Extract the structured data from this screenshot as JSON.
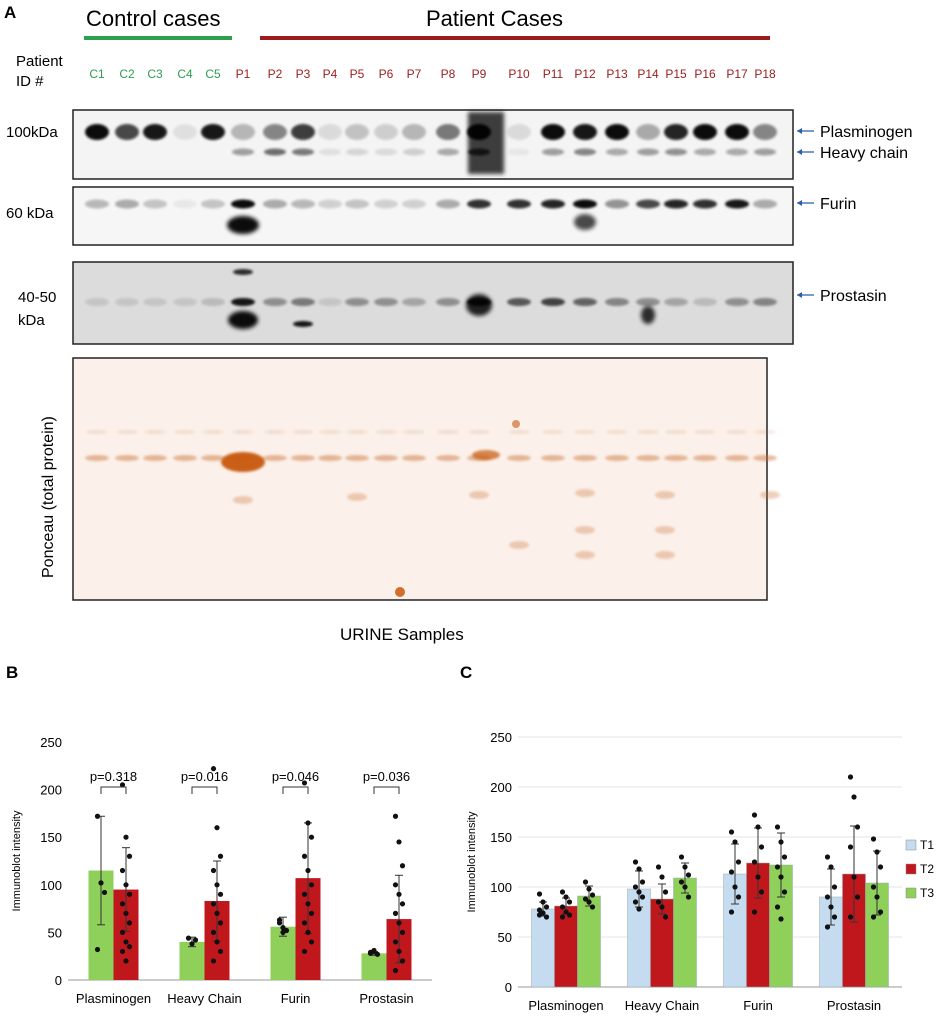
{
  "panelA": {
    "letter": "A",
    "control_header": "Control cases",
    "patient_header": "Patient Cases",
    "patient_id_label_1": "Patient",
    "patient_id_label_2": "ID #",
    "control_lanes": [
      "C1",
      "C2",
      "C3",
      "C4",
      "C5"
    ],
    "patient_lanes": [
      "P1",
      "P2",
      "P3",
      "P4",
      "P5",
      "P6",
      "P7",
      "P8",
      "P9",
      "P10",
      "P11",
      "P12",
      "P13",
      "P14",
      "P15",
      "P16",
      "P17",
      "P18"
    ],
    "blots": [
      {
        "kda": [
          "100kDa"
        ],
        "labels": [
          "Plasminogen",
          "Heavy chain"
        ]
      },
      {
        "kda": [
          "60 kDa"
        ],
        "labels": [
          "Furin"
        ]
      },
      {
        "kda": [
          "40-50",
          "kDa"
        ],
        "labels": [
          "Prostasin"
        ]
      }
    ],
    "ponceau_label": "Ponceau (total protein)",
    "samples_caption": "URINE Samples",
    "colors": {
      "control": "#2e9e4f",
      "patient": "#9b1c1c",
      "ponceau": "#c8692a"
    }
  },
  "chart_data": [
    {
      "panel": "B",
      "type": "bar",
      "ylabel": "Immunoblot intensity",
      "ylim": [
        0,
        250
      ],
      "yticks": [
        0,
        50,
        100,
        150,
        200,
        250
      ],
      "categories": [
        "Plasminogen",
        "Heavy Chain",
        "Furin",
        "Prostasin"
      ],
      "series": [
        {
          "color": "#8ed05a",
          "values": [
            115,
            40,
            56,
            28
          ],
          "errors": [
            57,
            5,
            10,
            2
          ],
          "points": [
            [
              172,
              102,
              92,
              32
            ],
            [
              44,
              38,
              42
            ],
            [
              63,
              55,
              52,
              60,
              50
            ],
            [
              28,
              30,
              27,
              29,
              31
            ]
          ]
        },
        {
          "color": "#c0171d",
          "values": [
            95,
            83,
            107,
            64
          ],
          "errors": [
            44,
            42,
            58,
            46
          ],
          "points": [
            [
              205,
              150,
              130,
              115,
              100,
              90,
              80,
              70,
              60,
              50,
              40,
              35,
              30,
              20
            ],
            [
              222,
              160,
              130,
              115,
              100,
              90,
              80,
              70,
              60,
              50,
              40,
              30,
              20
            ],
            [
              207,
              165,
              150,
              130,
              115,
              100,
              90,
              80,
              70,
              60,
              50,
              40,
              30
            ],
            [
              172,
              145,
              120,
              100,
              90,
              80,
              70,
              60,
              50,
              40,
              30,
              20,
              10
            ]
          ]
        }
      ],
      "pvalues": [
        "p=0.318",
        "p=0.016",
        "p=0.046",
        "p=0.036"
      ]
    },
    {
      "panel": "C",
      "type": "bar",
      "ylabel": "Immunoblot intensity",
      "ylim": [
        0,
        250
      ],
      "yticks": [
        0,
        50,
        100,
        150,
        200,
        250
      ],
      "categories": [
        "Plasminogen",
        "Heavy Chain",
        "Furin",
        "Prostasin"
      ],
      "series": [
        {
          "name": "T1",
          "color": "#c5dcf0",
          "values": [
            78,
            98,
            113,
            90
          ],
          "errors": [
            7,
            18,
            30,
            28
          ],
          "points": [
            [
              93,
              85,
              80,
              77,
              74,
              70,
              72
            ],
            [
              125,
              118,
              105,
              100,
              95,
              90,
              85,
              78
            ],
            [
              155,
              145,
              125,
              115,
              100,
              90,
              75
            ],
            [
              130,
              120,
              100,
              90,
              80,
              70,
              60
            ]
          ]
        },
        {
          "name": "T2",
          "color": "#c0171d",
          "values": [
            81,
            88,
            124,
            113
          ],
          "errors": [
            8,
            15,
            35,
            48
          ],
          "points": [
            [
              95,
              90,
              85,
              80,
              75,
              72,
              70
            ],
            [
              120,
              110,
              95,
              85,
              80,
              70
            ],
            [
              172,
              160,
              140,
              125,
              110,
              95,
              75
            ],
            [
              210,
              190,
              160,
              140,
              110,
              90,
              70
            ]
          ]
        },
        {
          "name": "T3",
          "color": "#8ed05a",
          "values": [
            91,
            109,
            122,
            104
          ],
          "errors": [
            10,
            15,
            32,
            32
          ],
          "points": [
            [
              105,
              98,
              92,
              88,
              85,
              80
            ],
            [
              130,
              120,
              112,
              105,
              100,
              90
            ],
            [
              160,
              145,
              130,
              120,
              110,
              95,
              80,
              68
            ],
            [
              148,
              135,
              120,
              100,
              90,
              75,
              70
            ]
          ]
        }
      ]
    }
  ],
  "panelB": {
    "letter": "B"
  },
  "panelC": {
    "letter": "C"
  }
}
